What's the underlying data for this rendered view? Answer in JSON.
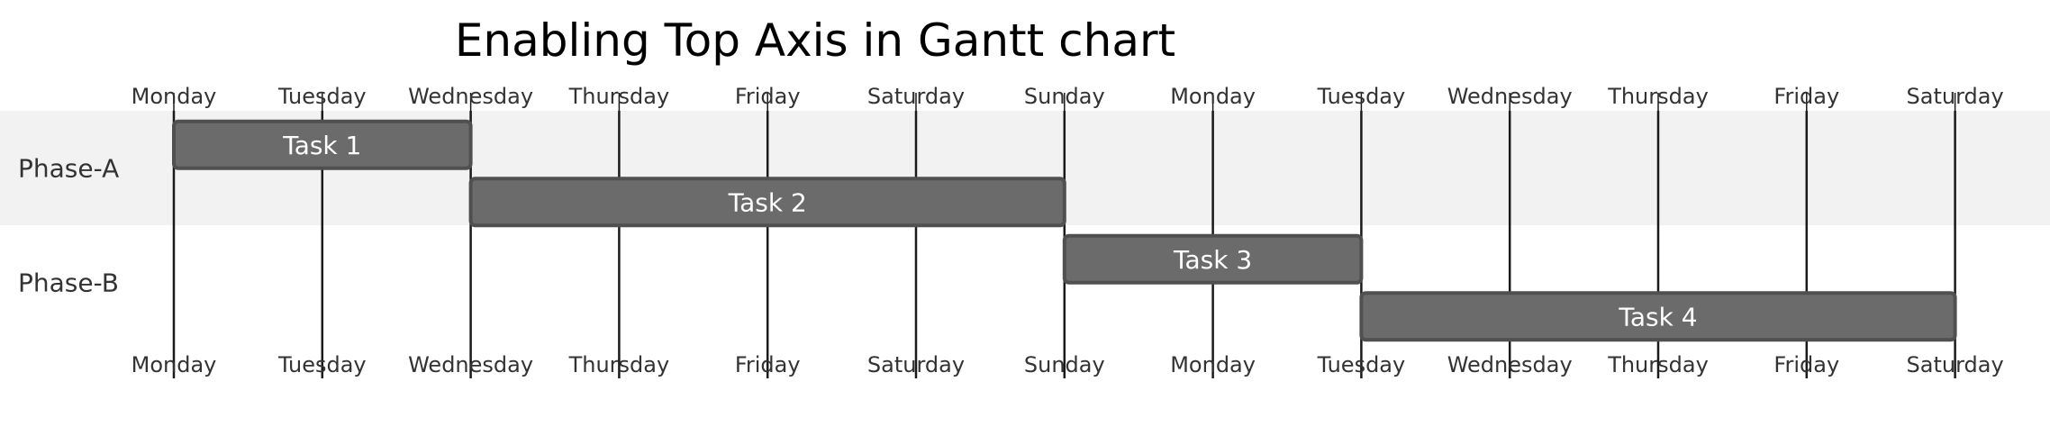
{
  "chart_data": {
    "type": "gantt",
    "title": "Enabling Top Axis in Gantt chart",
    "top_axis": true,
    "bottom_axis": true,
    "grid": true,
    "axis_ticks": [
      "Monday",
      "Tuesday",
      "Wednesday",
      "Thursday",
      "Friday",
      "Saturday",
      "Sunday",
      "Monday",
      "Tuesday",
      "Wednesday",
      "Thursday",
      "Friday",
      "Saturday"
    ],
    "phases": [
      {
        "name": "Phase-A",
        "shaded": true,
        "tasks": [
          {
            "name": "Task 1",
            "start": 0,
            "end": 2
          },
          {
            "name": "Task 2",
            "start": 2,
            "end": 6
          }
        ]
      },
      {
        "name": "Phase-B",
        "shaded": false,
        "tasks": [
          {
            "name": "Task 3",
            "start": 6,
            "end": 8
          },
          {
            "name": "Task 4",
            "start": 8,
            "end": 12
          }
        ]
      }
    ],
    "colors": {
      "task_fill": "#6b6b6b",
      "task_stroke": "#505050",
      "phase_shade": "#f2f2f2",
      "grid_line": "#1a1a1a"
    }
  }
}
